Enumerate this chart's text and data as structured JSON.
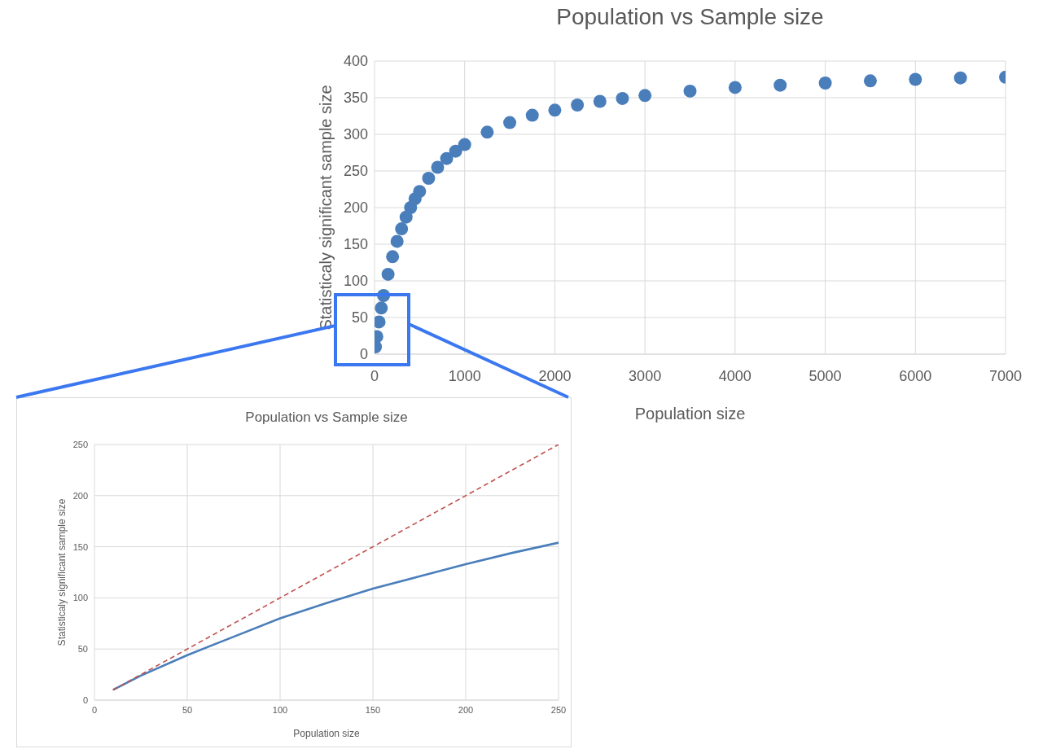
{
  "chart_data": [
    {
      "type": "scatter",
      "title": "Population vs Sample size",
      "xlabel": "Population size",
      "ylabel": "Statisticaly significant sample size",
      "x": [
        10,
        25,
        50,
        75,
        100,
        150,
        200,
        250,
        300,
        350,
        400,
        450,
        500,
        600,
        700,
        800,
        900,
        1000,
        1250,
        1500,
        1750,
        2000,
        2250,
        2500,
        2750,
        3000,
        3500,
        4000,
        4500,
        5000,
        5500,
        6000,
        6500,
        7000
      ],
      "series": [
        {
          "color": "#4a7ebb",
          "values": [
            10,
            24,
            44,
            63,
            80,
            109,
            133,
            154,
            171,
            187,
            200,
            212,
            222,
            240,
            255,
            267,
            277,
            286,
            303,
            316,
            326,
            333,
            340,
            345,
            349,
            353,
            359,
            364,
            367,
            370,
            373,
            375,
            377,
            378
          ]
        }
      ],
      "xlim": [
        0,
        7000
      ],
      "xticks": [
        0,
        1000,
        2000,
        3000,
        4000,
        5000,
        6000,
        7000
      ],
      "ylim": [
        0,
        400
      ],
      "yticks": [
        0,
        50,
        100,
        150,
        200,
        250,
        300,
        350,
        400
      ],
      "grid": true,
      "marker": "circle",
      "legend": false
    },
    {
      "type": "line",
      "title": "Population vs Sample size",
      "xlabel": "Population size",
      "ylabel": "Statisticaly significant sample size",
      "series": [
        {
          "color": "#4a7ebb",
          "x": [
            10,
            25,
            50,
            75,
            100,
            125,
            150,
            175,
            200,
            225,
            250
          ],
          "values": [
            10,
            24,
            44,
            62,
            80,
            95,
            109,
            121,
            133,
            144,
            154
          ],
          "line_style": "solid"
        },
        {
          "color": "#c0504d",
          "x": [
            10,
            250
          ],
          "values": [
            10,
            250
          ],
          "line_style": "dashed"
        }
      ],
      "xlim": [
        0,
        250
      ],
      "xticks": [
        0,
        50,
        100,
        150,
        200,
        250
      ],
      "ylim": [
        0,
        250
      ],
      "yticks": [
        0,
        50,
        100,
        150,
        200,
        250
      ],
      "grid": true,
      "marker": "none",
      "legend": false
    }
  ]
}
